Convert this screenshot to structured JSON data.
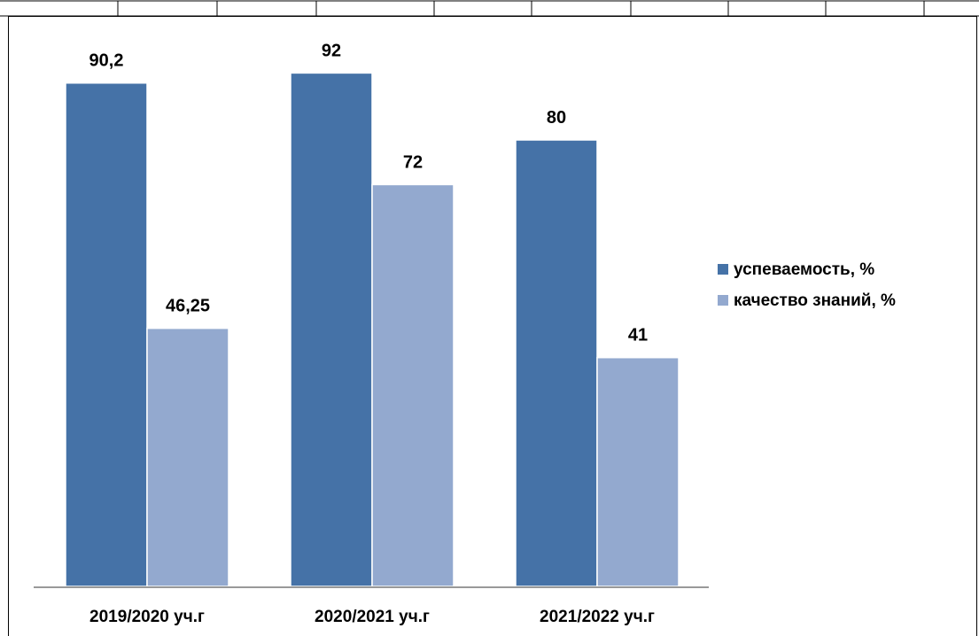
{
  "chart_data": {
    "type": "bar",
    "categories": [
      "2019/2020 уч.г",
      "2020/2021 уч.г",
      "2021/2022 уч.г"
    ],
    "series": [
      {
        "name": "успеваемость, %",
        "values": [
          90.2,
          92,
          80
        ],
        "color": "#4572A7"
      },
      {
        "name": "качество знаний, %",
        "values": [
          46.25,
          72,
          41
        ],
        "color": "#93A9CF"
      }
    ],
    "data_labels": [
      [
        "90,2",
        "92",
        "80"
      ],
      [
        "46,25",
        "72",
        "41"
      ]
    ],
    "ylim": [
      0,
      100
    ],
    "grid": false,
    "legend_position": "right",
    "title": "",
    "xlabel": "",
    "ylabel": ""
  }
}
